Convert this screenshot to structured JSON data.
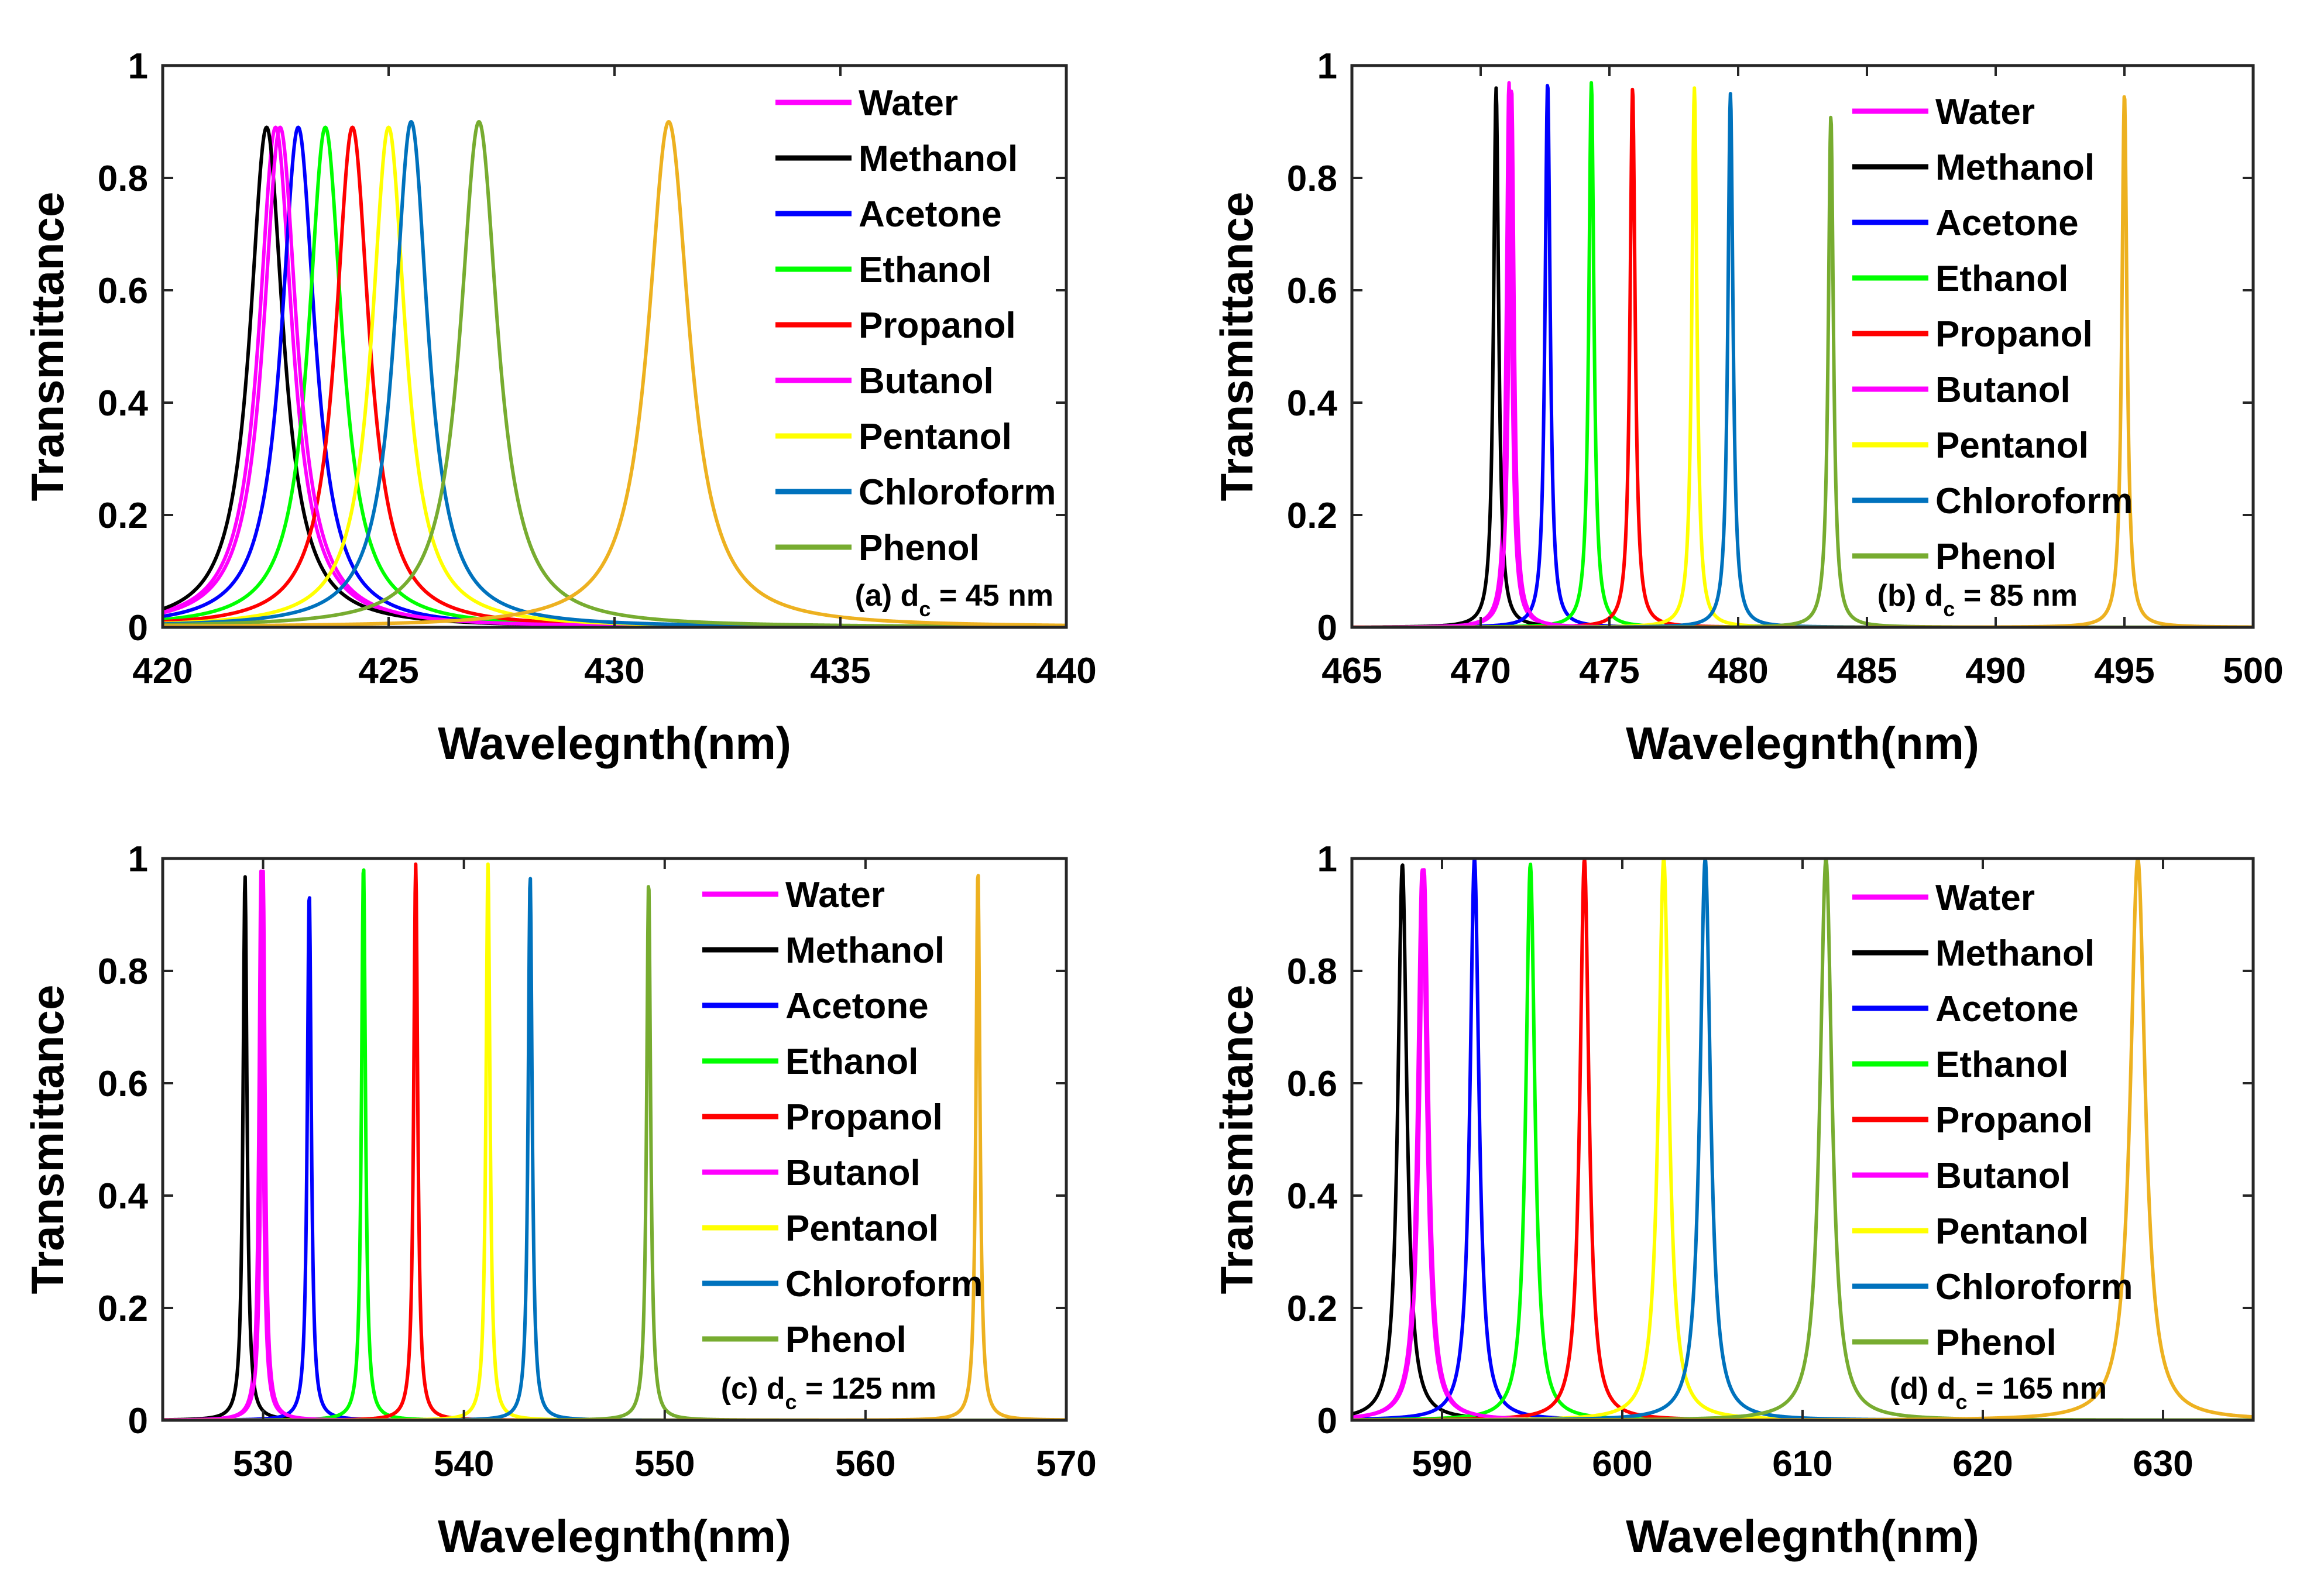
{
  "figure": {
    "legend_entries": [
      "Water",
      "Methanol",
      "Acetone",
      "Ethanol",
      "Propanol",
      "Butanol",
      "Pentanol",
      "Chloroform",
      "Phenol"
    ],
    "colors": {
      "Water": "#ff00ff",
      "Methanol": "#000000",
      "Acetone": "#0000ff",
      "Ethanol": "#00ff00",
      "Propanol": "#ff0000",
      "Butanol": "#ff00ff",
      "Pentanol": "#ffff00",
      "Chloroform": "#0072bd",
      "Phenol": "#77ac30",
      "Unlabeled": "#edb120"
    }
  },
  "chart_data": [
    {
      "type": "line",
      "panel": "a",
      "xlabel": "Wavelegnth(nm)",
      "ylabel": "Transmittance",
      "xlim": [
        420,
        440
      ],
      "ylim": [
        0,
        1
      ],
      "xticks": [
        420,
        425,
        430,
        435,
        440
      ],
      "yticks": [
        0,
        0.2,
        0.4,
        0.6,
        0.8,
        1
      ],
      "annotation": {
        "prefix": "(a) d",
        "subscript": "c",
        "suffix": " = 45 nm"
      },
      "legend_position": "top-right",
      "grid": false,
      "series": [
        {
          "name": "Water",
          "peak": 422.5,
          "height": 0.89,
          "width": 0.45
        },
        {
          "name": "Methanol",
          "peak": 422.3,
          "height": 0.89,
          "width": 0.45
        },
        {
          "name": "Acetone",
          "peak": 423.0,
          "height": 0.89,
          "width": 0.45
        },
        {
          "name": "Ethanol",
          "peak": 423.6,
          "height": 0.89,
          "width": 0.45
        },
        {
          "name": "Propanol",
          "peak": 424.2,
          "height": 0.89,
          "width": 0.45
        },
        {
          "name": "Butanol",
          "peak": 422.6,
          "height": 0.89,
          "width": 0.45
        },
        {
          "name": "Pentanol",
          "peak": 425.0,
          "height": 0.89,
          "width": 0.45
        },
        {
          "name": "Chloroform",
          "peak": 425.5,
          "height": 0.9,
          "width": 0.45
        },
        {
          "name": "Phenol",
          "peak": 427.0,
          "height": 0.9,
          "width": 0.5
        },
        {
          "peak": 431.2,
          "height": 0.9,
          "width": 0.55,
          "color_key": "Unlabeled"
        }
      ]
    },
    {
      "type": "line",
      "panel": "b",
      "xlabel": "Wavelegnth(nm)",
      "ylabel": "Transmittance",
      "xlim": [
        465,
        500
      ],
      "ylim": [
        0,
        1
      ],
      "xticks": [
        465,
        470,
        475,
        480,
        485,
        490,
        495,
        500
      ],
      "yticks": [
        0,
        0.2,
        0.4,
        0.6,
        0.8,
        1
      ],
      "annotation": {
        "prefix": "(b) d",
        "subscript": "c",
        "suffix": " = 85 nm"
      },
      "legend_position": "top-right",
      "grid": false,
      "series": [
        {
          "name": "Water",
          "peak": 471.1,
          "height": 0.97,
          "width": 0.12
        },
        {
          "name": "Methanol",
          "peak": 470.6,
          "height": 0.96,
          "width": 0.12
        },
        {
          "name": "Acetone",
          "peak": 472.6,
          "height": 0.97,
          "width": 0.12
        },
        {
          "name": "Ethanol",
          "peak": 474.3,
          "height": 0.97,
          "width": 0.12
        },
        {
          "name": "Propanol",
          "peak": 475.9,
          "height": 0.96,
          "width": 0.12
        },
        {
          "name": "Butanol",
          "peak": 471.2,
          "height": 0.96,
          "width": 0.12
        },
        {
          "name": "Pentanol",
          "peak": 478.3,
          "height": 0.96,
          "width": 0.12
        },
        {
          "name": "Chloroform",
          "peak": 479.7,
          "height": 0.95,
          "width": 0.12
        },
        {
          "name": "Phenol",
          "peak": 483.6,
          "height": 0.91,
          "width": 0.12
        },
        {
          "peak": 495.0,
          "height": 0.95,
          "width": 0.12,
          "color_key": "Unlabeled"
        }
      ]
    },
    {
      "type": "line",
      "panel": "c",
      "xlabel": "Wavelegnth(nm)",
      "ylabel": "Transmittance",
      "xlim": [
        525,
        570
      ],
      "ylim": [
        0,
        1
      ],
      "xticks": [
        530,
        540,
        550,
        560,
        570
      ],
      "yticks": [
        0,
        0.2,
        0.4,
        0.6,
        0.8,
        1
      ],
      "annotation": {
        "prefix": "(c) d",
        "subscript": "c",
        "suffix": " = 125 nm"
      },
      "legend_position": "top-right",
      "grid": false,
      "series": [
        {
          "name": "Water",
          "peak": 529.9,
          "height": 0.98,
          "width": 0.12
        },
        {
          "name": "Methanol",
          "peak": 529.1,
          "height": 0.97,
          "width": 0.12
        },
        {
          "name": "Acetone",
          "peak": 532.3,
          "height": 0.94,
          "width": 0.12
        },
        {
          "name": "Ethanol",
          "peak": 535.0,
          "height": 0.99,
          "width": 0.12
        },
        {
          "name": "Propanol",
          "peak": 537.6,
          "height": 0.99,
          "width": 0.12
        },
        {
          "name": "Butanol",
          "peak": 530.0,
          "height": 0.98,
          "width": 0.12
        },
        {
          "name": "Pentanol",
          "peak": 541.2,
          "height": 0.99,
          "width": 0.12
        },
        {
          "name": "Chloroform",
          "peak": 543.3,
          "height": 0.97,
          "width": 0.12
        },
        {
          "name": "Phenol",
          "peak": 549.2,
          "height": 0.96,
          "width": 0.12
        },
        {
          "peak": 565.6,
          "height": 0.98,
          "width": 0.12,
          "color_key": "Unlabeled"
        }
      ]
    },
    {
      "type": "line",
      "panel": "d",
      "xlabel": "Wavelegnth(nm)",
      "ylabel": "Transmittance",
      "xlim": [
        585,
        635
      ],
      "ylim": [
        0,
        1
      ],
      "xticks": [
        590,
        600,
        610,
        620,
        630
      ],
      "yticks": [
        0,
        0.2,
        0.4,
        0.6,
        0.8,
        1
      ],
      "annotation": {
        "prefix": "(d) d",
        "subscript": "c",
        "suffix": " = 165 nm"
      },
      "legend_position": "top-right",
      "grid": false,
      "series": [
        {
          "name": "Water",
          "peak": 588.9,
          "height": 0.98,
          "width": 0.3
        },
        {
          "name": "Methanol",
          "peak": 587.8,
          "height": 0.99,
          "width": 0.3
        },
        {
          "name": "Acetone",
          "peak": 591.8,
          "height": 1.0,
          "width": 0.3
        },
        {
          "name": "Ethanol",
          "peak": 594.9,
          "height": 0.99,
          "width": 0.3
        },
        {
          "name": "Propanol",
          "peak": 597.9,
          "height": 1.0,
          "width": 0.3
        },
        {
          "name": "Butanol",
          "peak": 589.0,
          "height": 0.98,
          "width": 0.3
        },
        {
          "name": "Pentanol",
          "peak": 602.3,
          "height": 1.0,
          "width": 0.35
        },
        {
          "name": "Chloroform",
          "peak": 604.6,
          "height": 1.0,
          "width": 0.35
        },
        {
          "name": "Phenol",
          "peak": 611.3,
          "height": 1.0,
          "width": 0.4
        },
        {
          "peak": 628.6,
          "height": 1.0,
          "width": 0.5,
          "color_key": "Unlabeled"
        }
      ]
    }
  ]
}
